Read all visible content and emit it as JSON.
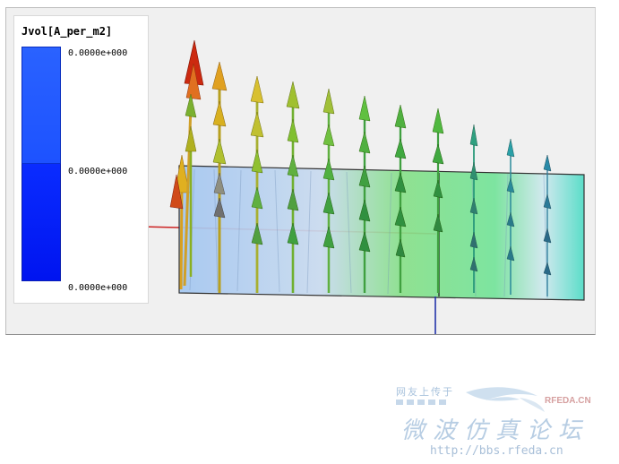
{
  "legend": {
    "title": "Jvol[A_per_m2]",
    "labels": [
      "0.0000e+000",
      "0.0000e+000",
      "0.0000e+000"
    ],
    "colors": [
      "#2a62ff",
      "#0a2cff"
    ]
  },
  "watermark": {
    "small_text": "网友上传于",
    "brand": "RFEDA.CN",
    "main_text": "微波仿真论坛",
    "url": "http://bbs.rfeda.cn"
  },
  "scene": {
    "icons": [
      "current-vector-arrow",
      "mesh-plane",
      "axis-line"
    ],
    "colors": {
      "axis_x": "#cc2222",
      "axis_z": "#2233aa",
      "plane_left": "#9cc4ee",
      "plane_right": "#7be6a6"
    }
  }
}
